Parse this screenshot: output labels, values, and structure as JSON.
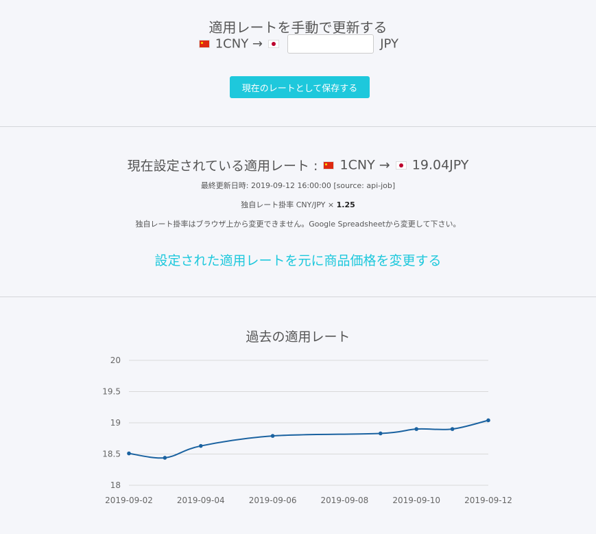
{
  "manual": {
    "title": "適用レートを手動で更新する",
    "from_label": "1CNY →",
    "to_label": "JPY",
    "input_value": "",
    "save_label": "現在のレートとして保存する"
  },
  "current": {
    "title_prefix": "現在設定されている適用レート :",
    "from_label": "1CNY →",
    "to_label": "19.04JPY",
    "last_updated": "最終更新日時: 2019-09-12 16:00:00 [source: api-job]",
    "markup_label": "独自レート掛率 CNY/JPY ×",
    "markup_value": "1.25",
    "note": "独自レート掛率はブラウザ上から変更できません。Google Spreadsheetから変更して下さい。",
    "update_link": "設定された適用レートを元に商品価格を変更する"
  },
  "chart_data": {
    "type": "line",
    "title": "過去の適用レート",
    "x": [
      "2019-09-02",
      "2019-09-03",
      "2019-09-04",
      "2019-09-06",
      "2019-09-09",
      "2019-09-10",
      "2019-09-11",
      "2019-09-12"
    ],
    "y": [
      18.51,
      18.44,
      18.63,
      18.79,
      18.83,
      18.9,
      18.9,
      19.04
    ],
    "xticks": [
      "2019-09-02",
      "2019-09-04",
      "2019-09-06",
      "2019-09-08",
      "2019-09-10",
      "2019-09-12"
    ],
    "yticks": [
      18,
      18.5,
      19,
      19.5,
      20
    ],
    "ylim": [
      18,
      20
    ],
    "xlim": [
      "2019-09-02",
      "2019-09-12"
    ],
    "grid": true,
    "line_color": "#1a62a0"
  }
}
